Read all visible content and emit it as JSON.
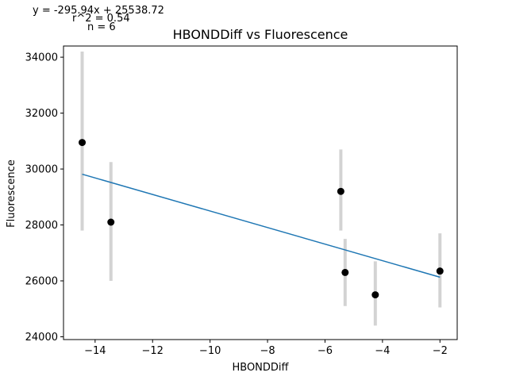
{
  "chart_data": {
    "type": "scatter",
    "title": "HBONDDiff vs Fluorescence",
    "xlabel": "HBONDDiff",
    "ylabel": "Fluorescence",
    "xlim": [
      -15.1,
      -1.4
    ],
    "ylim": [
      23900,
      34400
    ],
    "x_ticks": [
      -14,
      -12,
      -10,
      -8,
      -6,
      -4,
      -2
    ],
    "y_ticks": [
      24000,
      26000,
      28000,
      30000,
      32000,
      34000
    ],
    "grid": false,
    "annotations": {
      "equation": "y = -295.94x + 25538.72",
      "r2": "r^2 = 0.54",
      "n": "n = 6"
    },
    "points": [
      {
        "x": -14.45,
        "y": 30950,
        "err_low": 27800,
        "err_high": 34200
      },
      {
        "x": -13.45,
        "y": 28100,
        "err_low": 26000,
        "err_high": 30250
      },
      {
        "x": -5.45,
        "y": 29200,
        "err_low": 27800,
        "err_high": 30700
      },
      {
        "x": -5.3,
        "y": 26300,
        "err_low": 25100,
        "err_high": 27500
      },
      {
        "x": -4.25,
        "y": 25500,
        "err_low": 24400,
        "err_high": 26700
      },
      {
        "x": -2.0,
        "y": 26350,
        "err_low": 25050,
        "err_high": 27700
      }
    ],
    "regression": {
      "slope": -295.94,
      "intercept": 25538.72,
      "x_range": [
        -14.45,
        -2.0
      ]
    },
    "colors": {
      "points": "#000000",
      "error_bars": "#d3d3d3",
      "regression_line": "#1f77b4",
      "axes": "#000000"
    }
  }
}
